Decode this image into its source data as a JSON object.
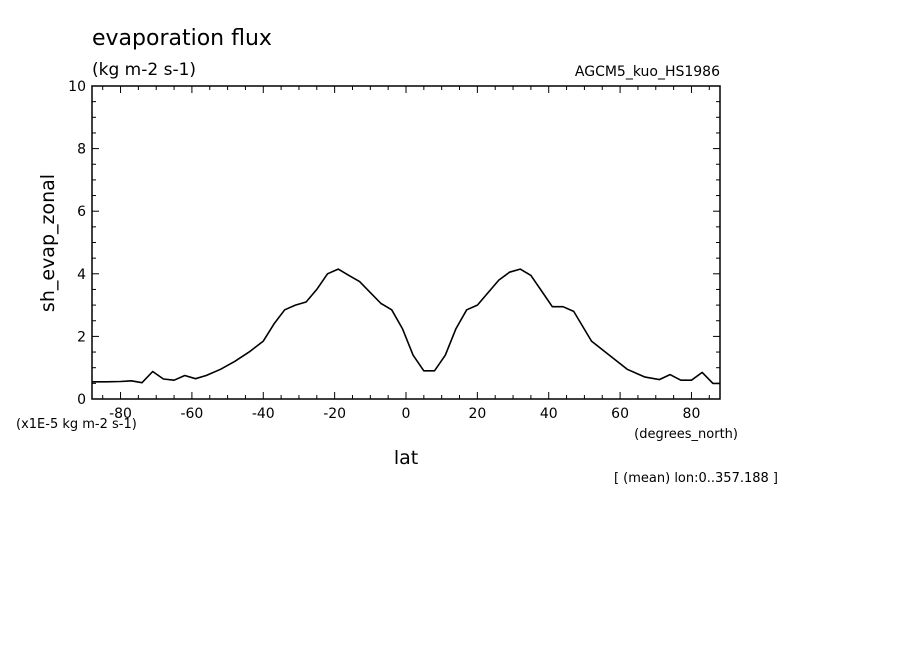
{
  "title": "evaporation flux",
  "units": "(kg m-2 s-1)",
  "dataset": "AGCM5_kuo_HS1986",
  "scale_note": "(x1E-5 kg m-2 s-1)",
  "x_units": "(degrees_north)",
  "averaging_note": "[ (mean) lon:0..357.188 ]",
  "chart_data": {
    "type": "line",
    "title": "evaporation flux",
    "xlabel": "lat",
    "ylabel": "sh_evap_zonal",
    "xlim": [
      -88,
      88
    ],
    "ylim": [
      0,
      10
    ],
    "xticks": [
      -80,
      -60,
      -40,
      -20,
      0,
      20,
      40,
      60,
      80
    ],
    "yticks": [
      0,
      2,
      4,
      6,
      8,
      10
    ],
    "grid": false,
    "legend": "none",
    "series": [
      {
        "values": [
          [
            -88,
            0.55
          ],
          [
            -84,
            0.55
          ],
          [
            -80,
            0.56
          ],
          [
            -77,
            0.58
          ],
          [
            -74,
            0.52
          ],
          [
            -71,
            0.88
          ],
          [
            -68,
            0.64
          ],
          [
            -65,
            0.6
          ],
          [
            -62,
            0.75
          ],
          [
            -59,
            0.65
          ],
          [
            -56,
            0.75
          ],
          [
            -52,
            0.95
          ],
          [
            -48,
            1.2
          ],
          [
            -44,
            1.5
          ],
          [
            -40,
            1.85
          ],
          [
            -37,
            2.4
          ],
          [
            -34,
            2.85
          ],
          [
            -31,
            3.0
          ],
          [
            -28,
            3.1
          ],
          [
            -25,
            3.5
          ],
          [
            -22,
            4.0
          ],
          [
            -19,
            4.15
          ],
          [
            -16,
            3.95
          ],
          [
            -13,
            3.75
          ],
          [
            -10,
            3.4
          ],
          [
            -7,
            3.05
          ],
          [
            -4,
            2.85
          ],
          [
            -1,
            2.25
          ],
          [
            2,
            1.4
          ],
          [
            5,
            0.9
          ],
          [
            8,
            0.9
          ],
          [
            11,
            1.4
          ],
          [
            14,
            2.25
          ],
          [
            17,
            2.85
          ],
          [
            20,
            3.0
          ],
          [
            23,
            3.4
          ],
          [
            26,
            3.8
          ],
          [
            29,
            4.05
          ],
          [
            32,
            4.15
          ],
          [
            35,
            3.95
          ],
          [
            38,
            3.45
          ],
          [
            41,
            2.95
          ],
          [
            44,
            2.95
          ],
          [
            47,
            2.8
          ],
          [
            52,
            1.85
          ],
          [
            57,
            1.4
          ],
          [
            62,
            0.95
          ],
          [
            67,
            0.7
          ],
          [
            71,
            0.62
          ],
          [
            74,
            0.78
          ],
          [
            77,
            0.6
          ],
          [
            80,
            0.6
          ],
          [
            83,
            0.85
          ],
          [
            86,
            0.5
          ],
          [
            88,
            0.5
          ]
        ]
      }
    ]
  }
}
